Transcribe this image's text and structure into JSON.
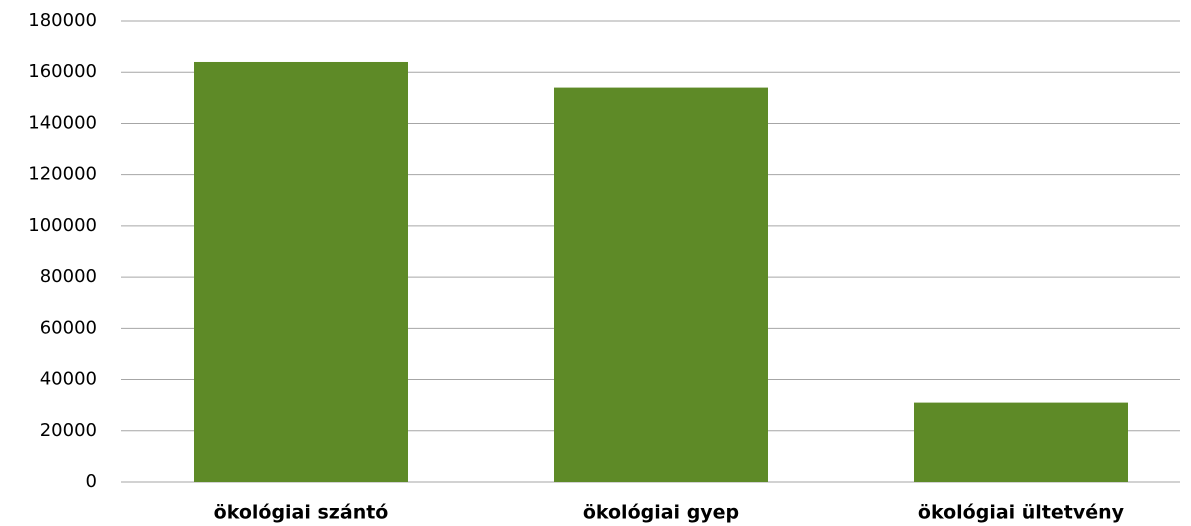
{
  "chart_data": {
    "type": "bar",
    "categories": [
      "ökológiai szántó",
      "ökológiai gyep",
      "ökológiai ültetvény"
    ],
    "values": [
      164000,
      154000,
      31000
    ],
    "color": "#5e8a27",
    "ylim": [
      0,
      180000
    ],
    "yticks": [
      0,
      20000,
      40000,
      60000,
      80000,
      100000,
      120000,
      140000,
      160000,
      180000
    ],
    "grid": true
  }
}
